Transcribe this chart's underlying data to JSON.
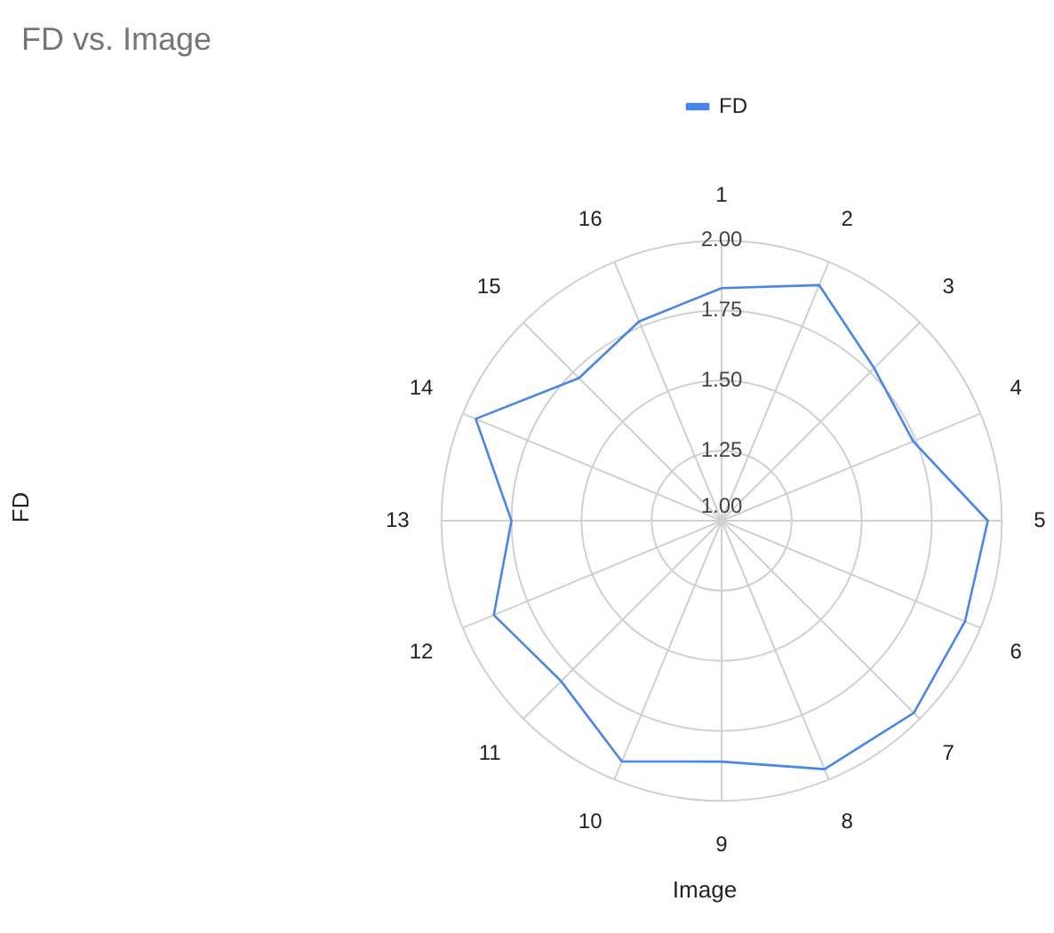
{
  "chart_data": {
    "type": "radar",
    "title": "FD vs. Image",
    "xlabel": "Image",
    "ylabel": "FD",
    "categories": [
      "1",
      "2",
      "3",
      "4",
      "5",
      "6",
      "7",
      "8",
      "9",
      "10",
      "11",
      "12",
      "13",
      "14",
      "15",
      "16"
    ],
    "series": [
      {
        "name": "FD",
        "color": "#4a86e8",
        "values": [
          1.83,
          1.91,
          1.77,
          1.74,
          1.95,
          1.94,
          1.97,
          1.96,
          1.86,
          1.93,
          1.81,
          1.88,
          1.75,
          1.95,
          1.72,
          1.77
        ]
      }
    ],
    "ylim": [
      1,
      2
    ],
    "yticks": [
      {
        "value": 1,
        "label": "1.00"
      },
      {
        "value": 1.25,
        "label": "1.25"
      },
      {
        "value": 1.5,
        "label": "1.50"
      },
      {
        "value": 1.75,
        "label": "1.75"
      },
      {
        "value": 2,
        "label": "2.00"
      }
    ],
    "grid": true,
    "legend": "top",
    "marker": "none"
  }
}
